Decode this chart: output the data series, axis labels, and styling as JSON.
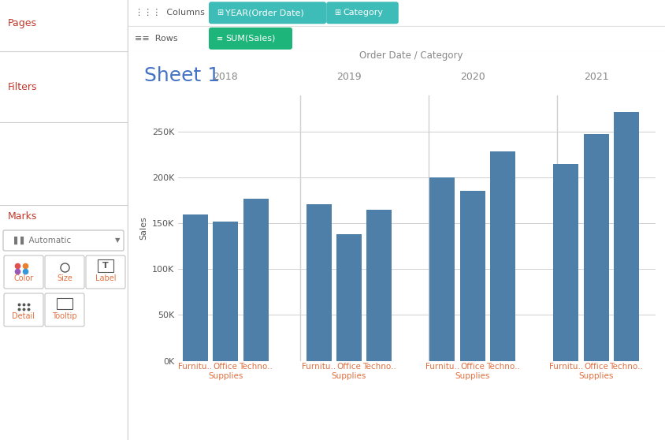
{
  "title": "Sheet 1",
  "xlabel_top": "Order Date / Category",
  "ylabel": "Sales",
  "years": [
    "2018",
    "2019",
    "2020",
    "2021"
  ],
  "values": {
    "2018": [
      160000,
      152000,
      177000
    ],
    "2019": [
      171000,
      138000,
      165000
    ],
    "2020": [
      200000,
      186000,
      229000
    ],
    "2021": [
      215000,
      248000,
      272000
    ]
  },
  "bar_color": "#4e7fa8",
  "yticks": [
    0,
    50000,
    100000,
    150000,
    200000,
    250000
  ],
  "ytick_labels": [
    "0K",
    "50K",
    "100K",
    "150K",
    "200K",
    "250K"
  ],
  "ylim": [
    0,
    290000
  ],
  "bg_color": "#ffffff",
  "sidebar_bg": "#efefef",
  "divider_color": "#d0d0d0",
  "year_label_color": "#888888",
  "top_label_color": "#888888",
  "sheet_title_color": "#4472c4",
  "title_fontsize": 18,
  "axis_label_fontsize": 8,
  "tick_fontsize": 8,
  "year_fontsize": 9,
  "cat_label_fontsize": 7.5,
  "cat_label_color": "#e07040",
  "pill_teal": "#3dbcb8",
  "pill_green": "#1db57a",
  "sidebar_label_color": "#c0392b",
  "header_line_color": "#e0e0e0"
}
